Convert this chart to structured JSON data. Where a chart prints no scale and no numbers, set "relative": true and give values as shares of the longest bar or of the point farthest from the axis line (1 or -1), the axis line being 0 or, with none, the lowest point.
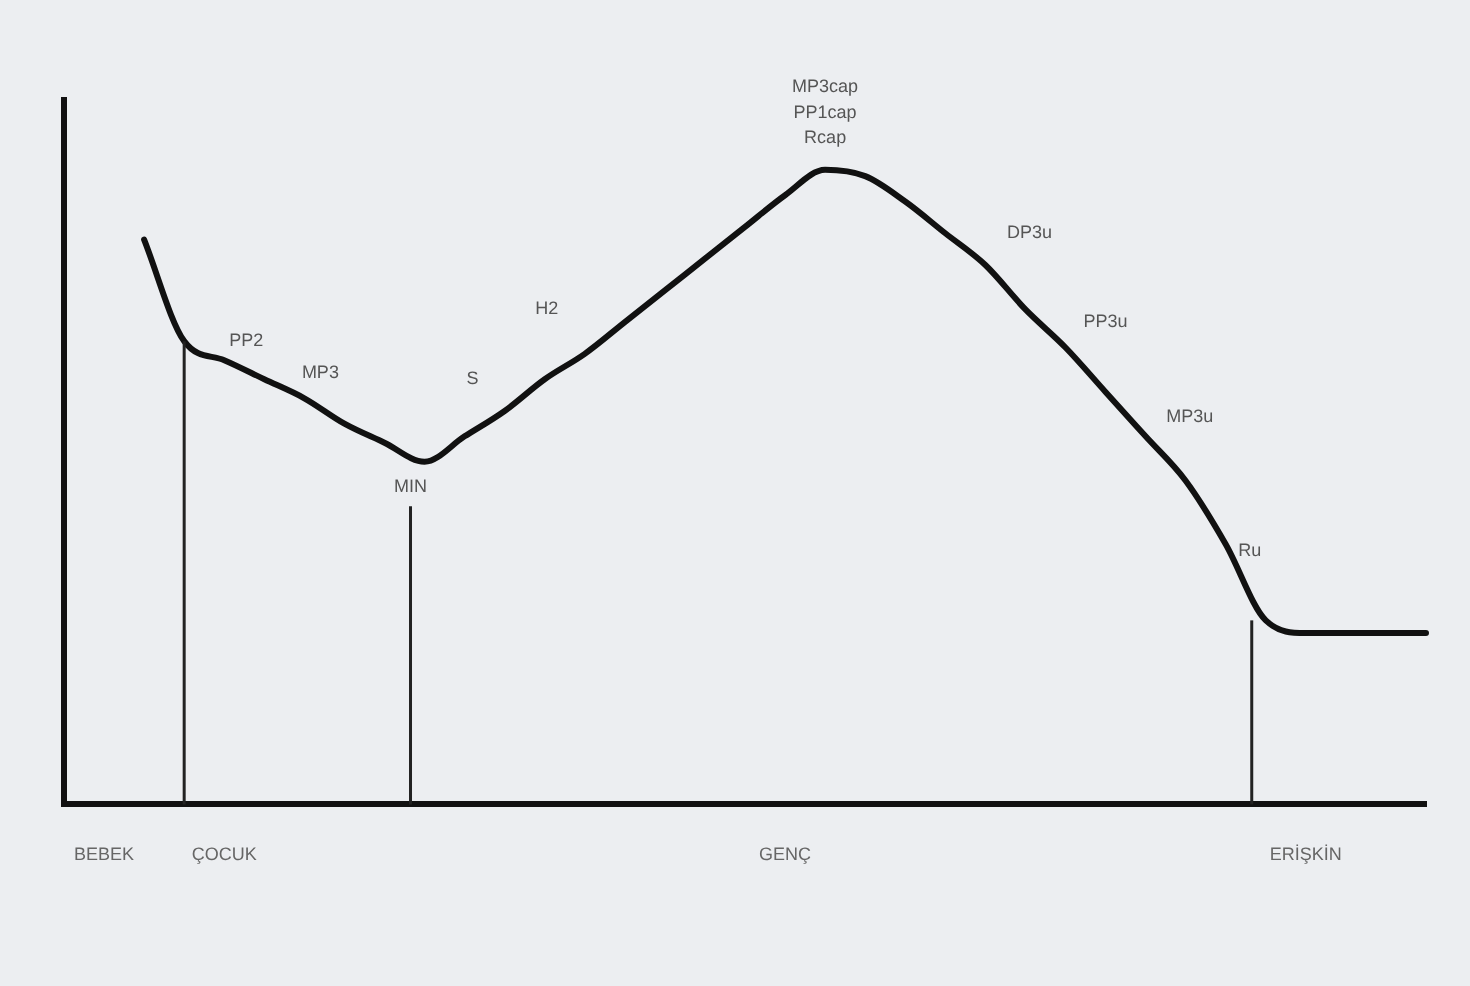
{
  "chart_data": {
    "type": "line",
    "relative": true,
    "categories": [
      null,
      "BEBEK",
      null,
      null,
      "ÇOCUK",
      null,
      null,
      null,
      null,
      null,
      null,
      null,
      null,
      null,
      null,
      null,
      null,
      null,
      "GENÇ",
      null,
      null,
      null,
      null,
      null,
      null,
      null,
      null,
      null,
      null,
      null,
      null,
      "ERİŞKİN",
      null,
      null,
      null
    ],
    "series": [
      {
        "color": "#111111",
        "values": [
          null,
          null,
          0.89,
          0.73,
          0.7,
          0.67,
          0.64,
          0.6,
          0.57,
          0.54,
          0.58,
          0.62,
          0.67,
          0.71,
          0.76,
          0.81,
          0.86,
          0.91,
          0.96,
          1,
          0.99,
          0.95,
          0.9,
          0.85,
          0.78,
          0.72,
          0.65,
          0.58,
          0.51,
          0.41,
          0.29,
          0.27,
          0.27,
          0.27,
          0.27
        ]
      }
    ],
    "annotations": [
      "PP2",
      "MP3",
      "S",
      "H2",
      "MIN",
      "MP3cap",
      "PP1cap",
      "Rcap",
      "DP3u",
      "PP3u",
      "MP3u",
      "Ru"
    ],
    "legend": false,
    "marker": "none",
    "line_style": "solid"
  }
}
